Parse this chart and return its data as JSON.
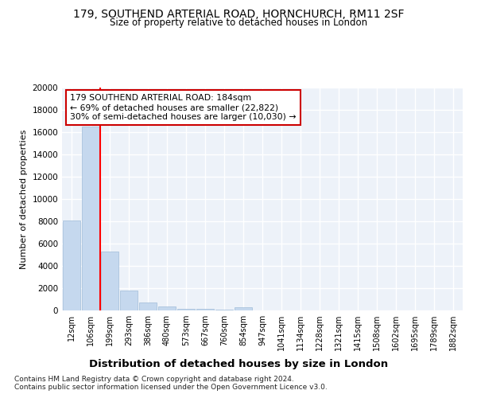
{
  "title": "179, SOUTHEND ARTERIAL ROAD, HORNCHURCH, RM11 2SF",
  "subtitle": "Size of property relative to detached houses in London",
  "xlabel": "Distribution of detached houses by size in London",
  "ylabel": "Number of detached properties",
  "categories": [
    "12sqm",
    "106sqm",
    "199sqm",
    "293sqm",
    "386sqm",
    "480sqm",
    "573sqm",
    "667sqm",
    "760sqm",
    "854sqm",
    "947sqm",
    "1041sqm",
    "1134sqm",
    "1228sqm",
    "1321sqm",
    "1415sqm",
    "1508sqm",
    "1602sqm",
    "1695sqm",
    "1789sqm",
    "1882sqm"
  ],
  "values": [
    8100,
    16500,
    5300,
    1800,
    750,
    330,
    170,
    110,
    80,
    290,
    0,
    0,
    0,
    0,
    0,
    0,
    0,
    0,
    0,
    0,
    0
  ],
  "bar_color": "#c5d8ee",
  "bar_edge_color": "#a0bcd8",
  "red_line_x": 1.5,
  "highlight_color": "#ff0000",
  "annotation_text": "179 SOUTHEND ARTERIAL ROAD: 184sqm\n← 69% of detached houses are smaller (22,822)\n30% of semi-detached houses are larger (10,030) →",
  "annotation_box_color": "#ffffff",
  "annotation_box_edge_color": "#cc0000",
  "ylim": [
    0,
    20000
  ],
  "yticks": [
    0,
    2000,
    4000,
    6000,
    8000,
    10000,
    12000,
    14000,
    16000,
    18000,
    20000
  ],
  "background_color": "#ffffff",
  "plot_bg_color": "#edf2f9",
  "grid_color": "#ffffff",
  "footer_line1": "Contains HM Land Registry data © Crown copyright and database right 2024.",
  "footer_line2": "Contains public sector information licensed under the Open Government Licence v3.0."
}
